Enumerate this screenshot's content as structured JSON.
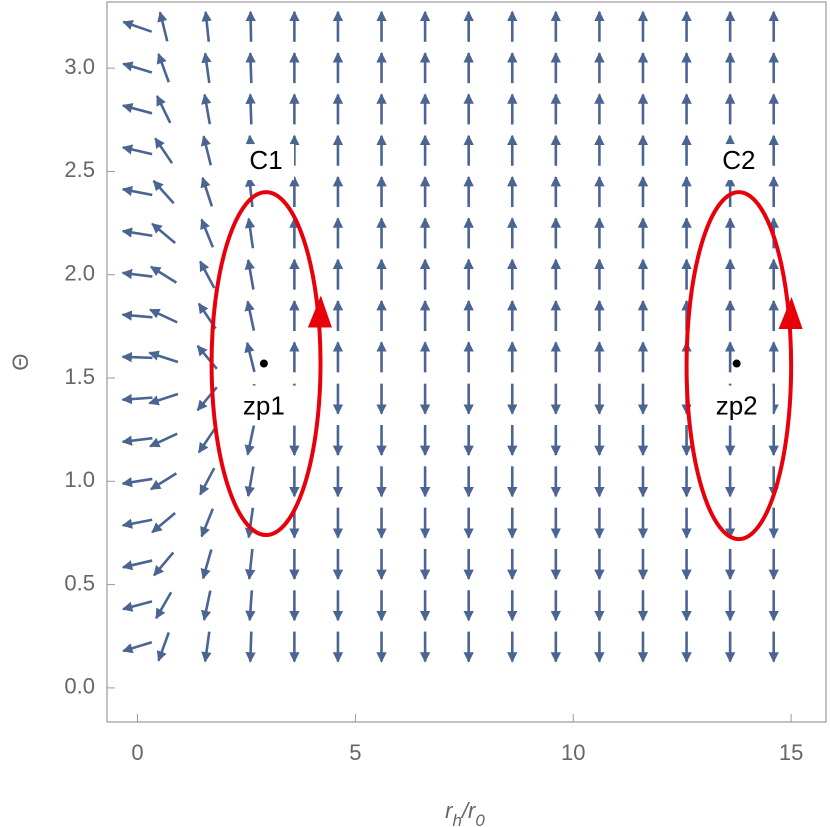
{
  "chart_data": {
    "type": "vector_field",
    "xlabel": [
      "r",
      "h",
      "/r",
      "0"
    ],
    "ylabel": "Θ",
    "xlim": [
      -0.7,
      15.8
    ],
    "ylim": [
      -0.165,
      3.32
    ],
    "xticks": [
      0,
      5,
      10,
      15
    ],
    "yticks": [
      {
        "value": 0,
        "label": "0.0"
      },
      {
        "value": 0.5,
        "label": "0.5"
      },
      {
        "value": 1,
        "label": "1.0"
      },
      {
        "value": 1.5,
        "label": "1.5"
      },
      {
        "value": 2,
        "label": "2.0"
      },
      {
        "value": 2.5,
        "label": "2.5"
      },
      {
        "value": 3,
        "label": "3.0"
      }
    ],
    "arrow_color": "#4a6591",
    "grid_x": [
      0,
      0.6,
      1.6,
      2.6,
      3.6,
      4.6,
      5.6,
      6.6,
      7.6,
      8.6,
      9.6,
      10.6,
      11.6,
      12.6,
      13.6,
      14.6
    ],
    "grid_y": [
      0.2,
      0.4,
      0.6,
      0.8,
      1.0,
      1.2,
      1.4,
      1.6,
      1.8,
      2.0,
      2.2,
      2.4,
      2.6,
      2.8,
      3.0,
      3.2
    ],
    "angles": [
      [
        197,
        250,
        262,
        268,
        270,
        270,
        270,
        270,
        270,
        270,
        270,
        270,
        270,
        270,
        270,
        270
      ],
      [
        195,
        240,
        258,
        266,
        270,
        270,
        270,
        270,
        270,
        270,
        270,
        270,
        270,
        270,
        270,
        270
      ],
      [
        193,
        230,
        254,
        264,
        270,
        270,
        270,
        270,
        270,
        270,
        270,
        270,
        270,
        270,
        270,
        270
      ],
      [
        191,
        220,
        248,
        262,
        270,
        270,
        270,
        270,
        270,
        270,
        270,
        270,
        270,
        270,
        270,
        270
      ],
      [
        189,
        212,
        242,
        260,
        270,
        270,
        270,
        270,
        270,
        270,
        270,
        270,
        270,
        270,
        270,
        270
      ],
      [
        187,
        205,
        236,
        258,
        270,
        270,
        270,
        270,
        270,
        270,
        270,
        270,
        270,
        270,
        270,
        270
      ],
      [
        184,
        198,
        230,
        256,
        270,
        270,
        270,
        270,
        270,
        270,
        270,
        270,
        270,
        270,
        270,
        270
      ],
      [
        178,
        162,
        130,
        104,
        90,
        90,
        90,
        90,
        90,
        90,
        90,
        90,
        90,
        90,
        90,
        90
      ],
      [
        175,
        155,
        124,
        102,
        90,
        90,
        90,
        90,
        90,
        90,
        90,
        90,
        90,
        90,
        90,
        90
      ],
      [
        173,
        148,
        118,
        100,
        90,
        90,
        90,
        90,
        90,
        90,
        90,
        90,
        90,
        90,
        90,
        90
      ],
      [
        171,
        140,
        112,
        98,
        90,
        90,
        90,
        90,
        90,
        90,
        90,
        90,
        90,
        90,
        90,
        90
      ],
      [
        169,
        132,
        108,
        96,
        90,
        90,
        90,
        90,
        90,
        90,
        90,
        90,
        90,
        90,
        90,
        90
      ],
      [
        167,
        124,
        104,
        94,
        90,
        90,
        90,
        90,
        90,
        90,
        90,
        90,
        90,
        90,
        90,
        90
      ],
      [
        165,
        116,
        100,
        92,
        90,
        90,
        90,
        90,
        90,
        90,
        90,
        90,
        90,
        90,
        90,
        90
      ],
      [
        163,
        110,
        98,
        92,
        90,
        90,
        90,
        90,
        90,
        90,
        90,
        90,
        90,
        90,
        90,
        90
      ],
      [
        161,
        104,
        96,
        91,
        90,
        90,
        90,
        90,
        90,
        90,
        90,
        90,
        90,
        90,
        90,
        90
      ]
    ],
    "contours": [
      {
        "name": "C1",
        "color": "#e8000b",
        "cx": 2.95,
        "cy": 1.57,
        "rx": 1.25,
        "ry": 0.83
      },
      {
        "name": "C2",
        "color": "#e8000b",
        "cx": 13.8,
        "cy": 1.56,
        "rx": 1.2,
        "ry": 0.84
      }
    ],
    "points": [
      {
        "name": "zp1",
        "x": 2.9,
        "y": 1.57
      },
      {
        "name": "zp2",
        "x": 13.75,
        "y": 1.57
      }
    ]
  }
}
